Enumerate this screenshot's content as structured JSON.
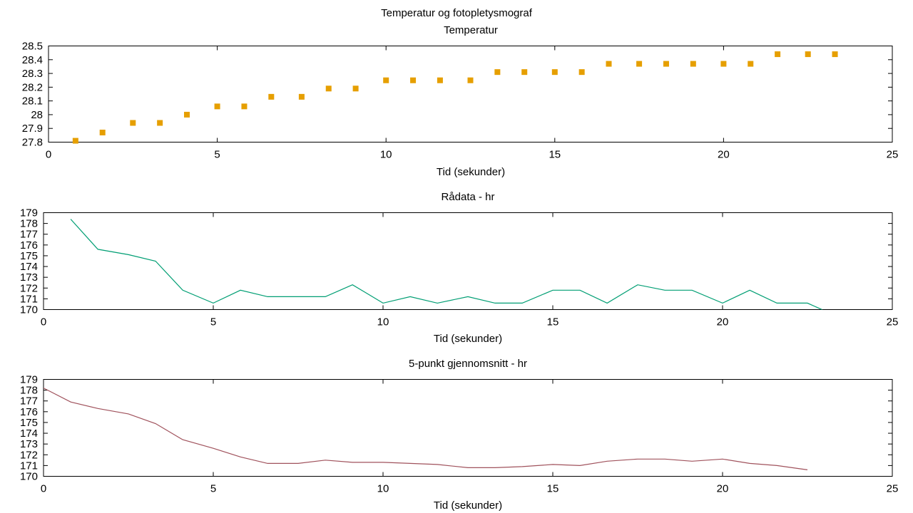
{
  "figure_title": "Temperatur og fotopletysmograf",
  "chart_data": [
    {
      "type": "scatter",
      "title": "Temperatur",
      "xlabel": "Tid (sekunder)",
      "ylabel": "",
      "xlim": [
        0,
        25
      ],
      "ylim": [
        27.8,
        28.5
      ],
      "xticks": [
        "0",
        "5",
        "10",
        "15",
        "20",
        "25"
      ],
      "yticks": [
        "27.8",
        "27.9",
        "28",
        "28.1",
        "28.2",
        "28.3",
        "28.4",
        "28.5"
      ],
      "grid": false,
      "series": [
        {
          "color": "#e69f00",
          "x": [
            0.8,
            1.6,
            2.5,
            3.3,
            4.1,
            5.0,
            5.8,
            6.6,
            7.5,
            8.3,
            9.1,
            10.0,
            10.8,
            11.6,
            12.5,
            13.3,
            14.1,
            15.0,
            15.8,
            16.6,
            17.5,
            18.3,
            19.1,
            20.0,
            20.8,
            21.6,
            22.5,
            23.3
          ],
          "y": [
            27.81,
            27.87,
            27.94,
            27.94,
            28.0,
            28.06,
            28.06,
            28.13,
            28.13,
            28.19,
            28.19,
            28.25,
            28.25,
            28.25,
            28.25,
            28.31,
            28.31,
            28.31,
            28.31,
            28.37,
            28.37,
            28.37,
            28.37,
            28.37,
            28.37,
            28.44,
            28.44,
            28.44
          ]
        }
      ]
    },
    {
      "type": "line",
      "title": "Rådata - hr",
      "xlabel": "Tid (sekunder)",
      "ylabel": "",
      "xlim": [
        0,
        25
      ],
      "ylim": [
        170,
        179
      ],
      "xticks": [
        "0",
        "5",
        "10",
        "15",
        "20",
        "25"
      ],
      "yticks": [
        "170",
        "171",
        "172",
        "173",
        "174",
        "175",
        "176",
        "177",
        "178",
        "179"
      ],
      "grid": false,
      "series": [
        {
          "color": "#009e73",
          "x": [
            0.8,
            1.6,
            2.5,
            3.3,
            4.1,
            5.0,
            5.8,
            6.6,
            7.5,
            8.3,
            9.1,
            10.0,
            10.8,
            11.6,
            12.5,
            13.3,
            14.1,
            15.0,
            15.8,
            16.6,
            17.5,
            18.3,
            19.1,
            20.0,
            20.8,
            21.6,
            22.5,
            23.0
          ],
          "y": [
            178.4,
            175.6,
            175.1,
            174.5,
            171.8,
            170.6,
            171.8,
            171.2,
            171.2,
            171.2,
            172.3,
            170.6,
            171.2,
            170.6,
            171.2,
            170.6,
            170.6,
            171.8,
            171.8,
            170.6,
            172.3,
            171.8,
            171.8,
            170.6,
            171.8,
            170.6,
            170.6,
            169.9
          ]
        }
      ]
    },
    {
      "type": "line",
      "title": "5-punkt gjennomsnitt - hr",
      "xlabel": "Tid (sekunder)",
      "ylabel": "",
      "xlim": [
        0,
        25
      ],
      "ylim": [
        170,
        179
      ],
      "xticks": [
        "0",
        "5",
        "10",
        "15",
        "20",
        "25"
      ],
      "yticks": [
        "170",
        "171",
        "172",
        "173",
        "174",
        "175",
        "176",
        "177",
        "178",
        "179"
      ],
      "grid": false,
      "series": [
        {
          "color": "#a0525c",
          "x": [
            0.0,
            0.8,
            1.6,
            2.5,
            3.3,
            4.1,
            5.0,
            5.8,
            6.6,
            7.5,
            8.3,
            9.1,
            10.0,
            10.8,
            11.6,
            12.5,
            13.3,
            14.1,
            15.0,
            15.8,
            16.6,
            17.5,
            18.3,
            19.1,
            20.0,
            20.8,
            21.6,
            22.5
          ],
          "y": [
            178.2,
            176.9,
            176.3,
            175.8,
            174.9,
            173.4,
            172.6,
            171.8,
            171.2,
            171.2,
            171.5,
            171.3,
            171.3,
            171.2,
            171.1,
            170.8,
            170.8,
            170.9,
            171.1,
            171.0,
            171.4,
            171.6,
            171.6,
            171.4,
            171.6,
            171.2,
            171.0,
            170.6
          ]
        }
      ]
    }
  ]
}
